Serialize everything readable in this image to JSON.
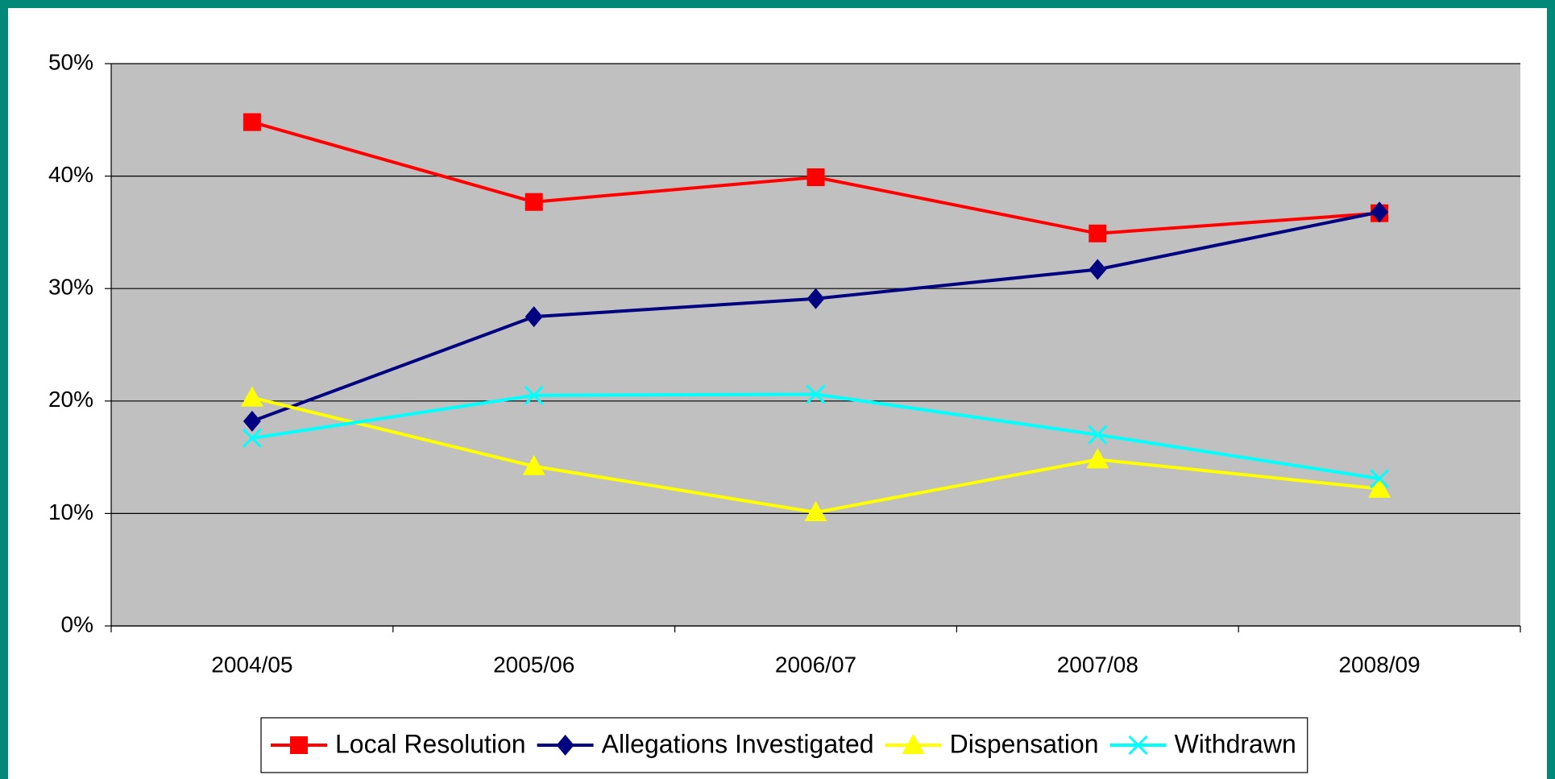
{
  "chart_data": {
    "type": "line",
    "categories": [
      "2004/05",
      "2005/06",
      "2006/07",
      "2007/08",
      "2008/09"
    ],
    "series": [
      {
        "name": "Local Resolution",
        "color": "#ff0000",
        "marker": "square",
        "values": [
          44.8,
          37.7,
          39.9,
          34.9,
          36.7
        ]
      },
      {
        "name": "Allegations Investigated",
        "color": "#000080",
        "marker": "diamond",
        "values": [
          18.2,
          27.5,
          29.1,
          31.7,
          36.8
        ]
      },
      {
        "name": "Dispensation",
        "color": "#ffff00",
        "marker": "triangle",
        "values": [
          20.3,
          14.2,
          10.1,
          14.8,
          12.2
        ]
      },
      {
        "name": "Withdrawn",
        "color": "#00ffff",
        "marker": "x",
        "values": [
          16.7,
          20.5,
          20.6,
          17.0,
          13.1
        ]
      }
    ],
    "ylim": [
      0,
      50
    ],
    "yticks": [
      {
        "value": 0,
        "label": "0%"
      },
      {
        "value": 10,
        "label": "10%"
      },
      {
        "value": 20,
        "label": "20%"
      },
      {
        "value": 30,
        "label": "30%"
      },
      {
        "value": 40,
        "label": "40%"
      },
      {
        "value": 50,
        "label": "50%"
      }
    ],
    "grid": true,
    "legend": "bottom",
    "plot_background": "#c0c0c0"
  }
}
